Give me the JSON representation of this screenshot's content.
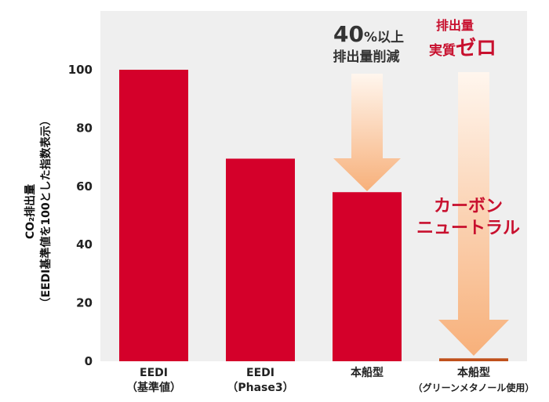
{
  "chart_data": {
    "type": "bar",
    "categories": [
      {
        "line1": "EEDI",
        "line2": "（基準値）"
      },
      {
        "line1": "EEDI",
        "line2": "（Phase3）"
      },
      {
        "line1": "本船型",
        "line2": ""
      },
      {
        "line1": "本船型",
        "line2": "（グリーンメタノール使用）"
      }
    ],
    "values": [
      100,
      69.5,
      58,
      1
    ],
    "ylabel_line1": "CO₂排出量",
    "ylabel_line2": "（EEDI基準値を100とした指数表示）",
    "ylim": [
      0,
      120
    ],
    "yticks": [
      0,
      20,
      40,
      60,
      80,
      100
    ],
    "grid": false,
    "colors": {
      "bar": "#d4002a",
      "bar_zero": "#c0501c",
      "plot_background": "#efefef",
      "arrow_top": "#fff6ee",
      "arrow_bottom": "#f7b07a",
      "annotation_dark": "#333333",
      "annotation_red": "#c8102e"
    },
    "annotations": {
      "reduction_big": "40",
      "reduction_unit": "%以上",
      "reduction_line2": "排出量削減",
      "zero_line1": "排出量",
      "zero_line2_small": "実質",
      "zero_line2_big": "ゼロ",
      "neutral_line1": "カーボン",
      "neutral_line2": "ニュートラル"
    }
  }
}
